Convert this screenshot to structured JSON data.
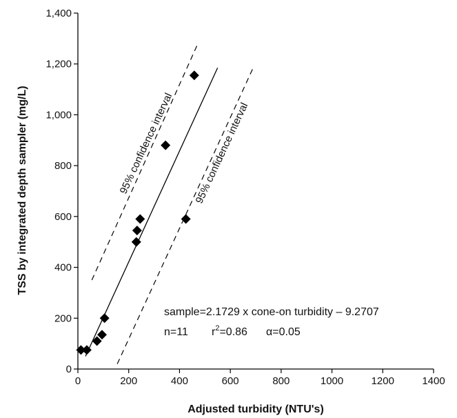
{
  "chart_data": {
    "type": "scatter",
    "xlabel": "Adjusted turbidity (NTU's)",
    "ylabel": "TSS by integrated depth sampler (mg/L)",
    "xlim": [
      0,
      1400
    ],
    "ylim": [
      0,
      1400
    ],
    "x_ticks": [
      0,
      200,
      400,
      600,
      800,
      1000,
      1200,
      1400
    ],
    "x_tick_labels": [
      "0",
      "200",
      "400",
      "600",
      "800",
      "1000",
      "1200",
      "1400"
    ],
    "y_ticks": [
      0,
      200,
      400,
      600,
      800,
      1000,
      1200,
      1400
    ],
    "y_tick_labels": [
      "0",
      "200",
      "400",
      "600",
      "800",
      "1,000",
      "1,200",
      "1,400"
    ],
    "grid": false,
    "series": [
      {
        "marker": "diamond",
        "color": "#000000",
        "x": [
          12,
          35,
          75,
          95,
          105,
          230,
          233,
          245,
          345,
          425,
          458
        ],
        "y": [
          75,
          75,
          110,
          135,
          200,
          500,
          545,
          590,
          880,
          590,
          1155
        ]
      }
    ],
    "regression_line": {
      "x": [
        30,
        550
      ],
      "y": [
        50,
        1185
      ],
      "style": "solid"
    },
    "confidence_bands": [
      {
        "x": [
          55,
          470
        ],
        "y": [
          350,
          1275
        ],
        "style": "dashed"
      },
      {
        "x": [
          155,
          690
        ],
        "y": [
          20,
          1185
        ],
        "style": "dashed"
      }
    ],
    "annotations": {
      "equation": "sample=2.1729 x cone-on turbidity – 9.2707",
      "n": "n=11",
      "r2_prefix": "r",
      "r2_sup": "2",
      "r2_suffix": "=0.86",
      "alpha": "α=0.05",
      "ci_upper": "95% confidence interval",
      "ci_lower": "95% confidence interval"
    }
  }
}
